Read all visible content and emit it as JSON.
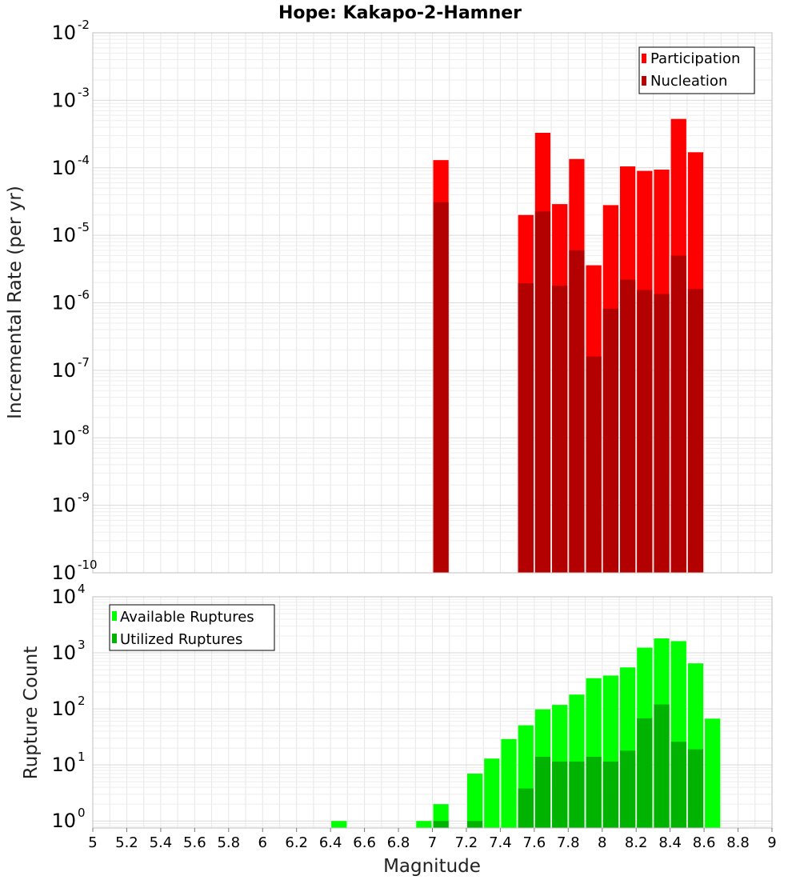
{
  "title": "Hope: Kakapo-2-Hamner",
  "xlabel": "Magnitude",
  "chart_data": [
    {
      "type": "bar",
      "scale": "log",
      "ylabel": "Incremental Rate (per yr)",
      "ylim": [
        1e-10,
        0.01
      ],
      "ytick_exponents": [
        "-2",
        "-3",
        "-4",
        "-5",
        "-6",
        "-7",
        "-8",
        "-9",
        "-10"
      ],
      "legend_position": "top-right",
      "grid": true,
      "series": [
        {
          "name": "Participation",
          "color": "#ff0000",
          "x": [
            7.05,
            7.55,
            7.65,
            7.75,
            7.85,
            7.95,
            8.05,
            8.15,
            8.25,
            8.35,
            8.45,
            8.55
          ],
          "values": [
            0.00013,
            2e-05,
            0.00033,
            2.9e-05,
            0.000135,
            3.6e-06,
            2.8e-05,
            0.000105,
            9e-05,
            9.4e-05,
            0.00053,
            0.00017
          ]
        },
        {
          "name": "Nucleation",
          "color": "#b30000",
          "x": [
            7.05,
            7.55,
            7.65,
            7.75,
            7.85,
            7.95,
            8.05,
            8.15,
            8.25,
            8.35,
            8.45,
            8.55
          ],
          "values": [
            3.1e-05,
            1.95e-06,
            2.25e-05,
            1.8e-06,
            6e-06,
            1.6e-07,
            8.2e-07,
            2.2e-06,
            1.55e-06,
            1.35e-06,
            5e-06,
            1.6e-06
          ]
        }
      ]
    },
    {
      "type": "bar",
      "scale": "log",
      "ylabel": "Rupture Count",
      "ylim": [
        0.75,
        10000
      ],
      "ytick_exponents": [
        "4",
        "3",
        "2",
        "1",
        "0"
      ],
      "legend_position": "top-left",
      "grid": true,
      "series": [
        {
          "name": "Available Ruptures",
          "color": "#00ff00",
          "x": [
            6.45,
            6.95,
            7.05,
            7.25,
            7.35,
            7.45,
            7.55,
            7.65,
            7.75,
            7.85,
            7.95,
            8.05,
            8.15,
            8.25,
            8.35,
            8.45,
            8.55,
            8.65
          ],
          "values": [
            1,
            1,
            2,
            7,
            13,
            29,
            51,
            98,
            118,
            180,
            353,
            393,
            550,
            1240,
            1810,
            1620,
            650,
            67
          ]
        },
        {
          "name": "Utilized Ruptures",
          "color": "#00b300",
          "x": [
            7.05,
            7.25,
            7.55,
            7.65,
            7.75,
            7.85,
            7.95,
            8.05,
            8.15,
            8.25,
            8.35,
            8.45,
            8.55
          ],
          "values": [
            1,
            1,
            3.8,
            14,
            11.5,
            11.5,
            14,
            11.5,
            18,
            68,
            120,
            26,
            19
          ]
        }
      ]
    }
  ],
  "xaxis": {
    "min": 5,
    "max": 9,
    "ticks": [
      5,
      5.2,
      5.4,
      5.6,
      5.8,
      6,
      6.2,
      6.4,
      6.6,
      6.8,
      7,
      7.2,
      7.4,
      7.6,
      7.8,
      8,
      8.2,
      8.4,
      8.6,
      8.8,
      9
    ],
    "tick_labels": [
      "5",
      "5.2",
      "5.4",
      "5.6",
      "5.8",
      "6",
      "6.2",
      "6.4",
      "6.6",
      "6.8",
      "7",
      "7.2",
      "7.4",
      "7.6",
      "7.8",
      "8",
      "8.2",
      "8.4",
      "8.6",
      "8.8",
      "9"
    ]
  },
  "ytick_base": "10",
  "bar_width_mag": 0.1,
  "colors": {
    "grid": "#e6e6e6",
    "frame": "#bfbfbf"
  }
}
